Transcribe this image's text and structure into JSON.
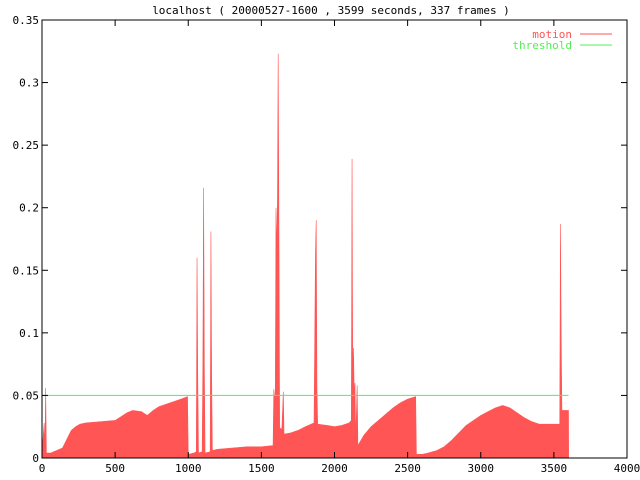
{
  "chart_data": {
    "type": "area",
    "title": "localhost ( 20000527-1600 , 3599 seconds, 337 frames )",
    "xlabel": "",
    "ylabel": "",
    "xlim": [
      0,
      4000
    ],
    "ylim": [
      0,
      0.35
    ],
    "x_ticks": [
      "0",
      "500",
      "1000",
      "1500",
      "2000",
      "2500",
      "3000",
      "3500",
      "4000"
    ],
    "y_ticks": [
      "0",
      "0.05",
      "0.1",
      "0.15",
      "0.2",
      "0.25",
      "0.3",
      "0.35"
    ],
    "grid": false,
    "legend_position": "top-right",
    "series": [
      {
        "name": "motion",
        "color": "#ff5555",
        "style": "filled-area",
        "points": [
          [
            0,
            0.005
          ],
          [
            15,
            0.028
          ],
          [
            20,
            0.005
          ],
          [
            25,
            0.056
          ],
          [
            30,
            0.004
          ],
          [
            60,
            0.004
          ],
          [
            100,
            0.006
          ],
          [
            140,
            0.008
          ],
          [
            170,
            0.015
          ],
          [
            200,
            0.022
          ],
          [
            230,
            0.025
          ],
          [
            260,
            0.027
          ],
          [
            300,
            0.028
          ],
          [
            400,
            0.029
          ],
          [
            500,
            0.03
          ],
          [
            540,
            0.033
          ],
          [
            580,
            0.036
          ],
          [
            620,
            0.038
          ],
          [
            680,
            0.037
          ],
          [
            720,
            0.034
          ],
          [
            760,
            0.038
          ],
          [
            800,
            0.041
          ],
          [
            850,
            0.043
          ],
          [
            900,
            0.045
          ],
          [
            950,
            0.047
          ],
          [
            995,
            0.049
          ],
          [
            1000,
            0.003
          ],
          [
            1040,
            0.004
          ],
          [
            1055,
            0.005
          ],
          [
            1060,
            0.16
          ],
          [
            1065,
            0.065
          ],
          [
            1070,
            0.004
          ],
          [
            1095,
            0.005
          ],
          [
            1100,
            0.075
          ],
          [
            1105,
            0.216
          ],
          [
            1110,
            0.075
          ],
          [
            1115,
            0.004
          ],
          [
            1150,
            0.005
          ],
          [
            1155,
            0.181
          ],
          [
            1160,
            0.065
          ],
          [
            1165,
            0.006
          ],
          [
            1200,
            0.007
          ],
          [
            1300,
            0.008
          ],
          [
            1400,
            0.009
          ],
          [
            1500,
            0.009
          ],
          [
            1580,
            0.01
          ],
          [
            1585,
            0.055
          ],
          [
            1590,
            0.048
          ],
          [
            1595,
            0.05
          ],
          [
            1600,
            0.2
          ],
          [
            1605,
            0.165
          ],
          [
            1610,
            0.205
          ],
          [
            1615,
            0.323
          ],
          [
            1620,
            0.185
          ],
          [
            1625,
            0.024
          ],
          [
            1640,
            0.023
          ],
          [
            1650,
            0.053
          ],
          [
            1655,
            0.019
          ],
          [
            1700,
            0.02
          ],
          [
            1750,
            0.022
          ],
          [
            1800,
            0.025
          ],
          [
            1860,
            0.028
          ],
          [
            1870,
            0.165
          ],
          [
            1875,
            0.19
          ],
          [
            1880,
            0.055
          ],
          [
            1885,
            0.027
          ],
          [
            1950,
            0.026
          ],
          [
            2000,
            0.025
          ],
          [
            2050,
            0.026
          ],
          [
            2100,
            0.028
          ],
          [
            2115,
            0.03
          ],
          [
            2120,
            0.239
          ],
          [
            2125,
            0.055
          ],
          [
            2130,
            0.088
          ],
          [
            2135,
            0.05
          ],
          [
            2140,
            0.06
          ],
          [
            2145,
            0.015
          ],
          [
            2155,
            0.058
          ],
          [
            2160,
            0.01
          ],
          [
            2180,
            0.014
          ],
          [
            2200,
            0.018
          ],
          [
            2250,
            0.025
          ],
          [
            2300,
            0.03
          ],
          [
            2350,
            0.035
          ],
          [
            2400,
            0.04
          ],
          [
            2450,
            0.044
          ],
          [
            2500,
            0.047
          ],
          [
            2555,
            0.049
          ],
          [
            2560,
            0.003
          ],
          [
            2600,
            0.003
          ],
          [
            2640,
            0.004
          ],
          [
            2700,
            0.006
          ],
          [
            2750,
            0.009
          ],
          [
            2800,
            0.014
          ],
          [
            2850,
            0.02
          ],
          [
            2900,
            0.026
          ],
          [
            2950,
            0.03
          ],
          [
            3000,
            0.034
          ],
          [
            3050,
            0.037
          ],
          [
            3100,
            0.04
          ],
          [
            3150,
            0.042
          ],
          [
            3200,
            0.04
          ],
          [
            3250,
            0.036
          ],
          [
            3300,
            0.032
          ],
          [
            3350,
            0.029
          ],
          [
            3400,
            0.027
          ],
          [
            3450,
            0.027
          ],
          [
            3500,
            0.027
          ],
          [
            3540,
            0.027
          ],
          [
            3545,
            0.187
          ],
          [
            3550,
            0.095
          ],
          [
            3555,
            0.038
          ],
          [
            3600,
            0.038
          ],
          [
            3601,
            0
          ]
        ]
      },
      {
        "name": "threshold",
        "color": "#55ee55",
        "style": "line",
        "points": [
          [
            0,
            0.05
          ],
          [
            3600,
            0.05
          ]
        ]
      }
    ]
  }
}
